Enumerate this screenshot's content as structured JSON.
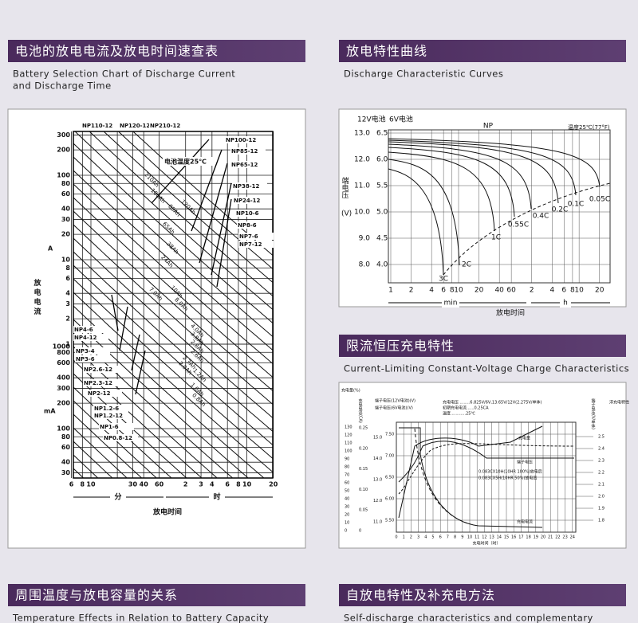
{
  "sections": [
    {
      "title": "电池的放电电流及放电时间速查表",
      "subtitle": [
        "Battery Selection Chart of Discharge Current",
        "and Discharge Time"
      ]
    },
    {
      "title": "放电特性曲线",
      "subtitle": [
        "Discharge Characteristic Curves"
      ]
    },
    {
      "title": "限流恒压充电特性",
      "subtitle": [
        "Current-Limiting Constant-Voltage Charge Characteristics"
      ]
    },
    {
      "title": "周围温度与放电容量的关系",
      "subtitle": [
        "Temperature Effects in Relation to Battery Capacity"
      ]
    },
    {
      "title": "自放电特性及补充电方法",
      "subtitle": [
        "Self-discharge characteristics and complementary"
      ]
    }
  ],
  "selection_chart": {
    "y_ticks_a": [
      300,
      200,
      100,
      80,
      60,
      40,
      30,
      20,
      10,
      8,
      6,
      4,
      3,
      2,
      1
    ],
    "unit_a": "A",
    "y_ticks_ma": [
      1000,
      800,
      600,
      400,
      300,
      200,
      100,
      80,
      60,
      40,
      30
    ],
    "unit_ma": "mA",
    "y_label": "放电电流",
    "x_ticks_min": [
      6,
      8,
      10,
      30,
      40,
      60
    ],
    "x_ticks_h": [
      2,
      3,
      4,
      6,
      8,
      10,
      20
    ],
    "x_unit_min": "分",
    "x_unit_h": "时",
    "x_label": "放电时间",
    "note": "电池温度25℃",
    "models": [
      "NP110-12",
      "NP120-12",
      "NP210-12",
      "NP100-12",
      "NP85-12",
      "NP65-12",
      "NP38-12",
      "NP24-12",
      "NP10-6",
      "NP8-6",
      "NP7-6",
      "NP7-12",
      "NP4-6",
      "NP4-12",
      "NP3-4",
      "NP3-6",
      "NP2.6-12",
      "NP2.3-12",
      "NP2-12",
      "NP1.2-6",
      "NP1.2-12",
      "NP1-6",
      "NP0.8-12"
    ],
    "capacities": [
      "210Ah",
      "100Ah",
      "120Ah",
      "85Ah",
      "65Ah",
      "38Ah",
      "24Ah",
      "10Ah",
      "7.0Ah",
      "8.0Ah",
      "4.0Ah",
      "3.8Ah",
      "2.8Ah",
      "2.6Ah",
      "2.3Ah",
      "2.0Ah",
      "1.2Ah",
      "1.0Ah",
      "0.8Ah"
    ]
  },
  "discharge_chart": {
    "label_12v": "12V电池",
    "label_6v": "6V电池",
    "series": "NP",
    "temperature": "温度25℃(77°F)",
    "y_ticks_12v": [
      "13.0",
      "12.0",
      "11.0",
      "10.0",
      "9.0",
      "8.0"
    ],
    "y_ticks_6v": [
      "6.5",
      "6.0",
      "5.5",
      "5.0",
      "4.5",
      "4.0"
    ],
    "y_label": "端电压",
    "y_unit": "(V)",
    "x_ticks_min": [
      1,
      2,
      4,
      6,
      8,
      10,
      20,
      40,
      60
    ],
    "x_ticks_h": [
      2,
      4,
      6,
      8,
      10,
      20
    ],
    "x_unit_min": "min",
    "x_unit_h": "h",
    "x_label": "放电时间",
    "curves": [
      "3C",
      "2C",
      "1C",
      "0.55C",
      "0.4C",
      "0.2C",
      "0.1C",
      "0.05C"
    ]
  },
  "charge_chart": {
    "label_pct": "充电量(%)",
    "label_current": "充电电流(CA)",
    "label_v12": "端子电压(12V电池)(V)",
    "label_v6": "端子电压(6V电池)(V)",
    "label_cell": "端子电压(V/单体)",
    "label_float": "浮充电特性",
    "pct_ticks": [
      130,
      120,
      110,
      100,
      90,
      80,
      70,
      60,
      50,
      40,
      30,
      20,
      10,
      0
    ],
    "current_ticks": [
      "0.25",
      "0.20",
      "0.15",
      "0.10",
      "0.05",
      "0"
    ],
    "v12_ticks": [
      "15.0",
      "14.0",
      "13.0",
      "12.0",
      "11.0"
    ],
    "v6_ticks": [
      "7.50",
      "7.00",
      "6.50",
      "6.00",
      "5.50"
    ],
    "cell_ticks": [
      "2.5",
      "2.4",
      "2.3",
      "2.2",
      "2.1",
      "2.0",
      "1.9",
      "1.8"
    ],
    "x_ticks": [
      "0",
      "1",
      "2",
      "3",
      "4",
      "5",
      "6",
      "7",
      "8",
      "9",
      "10",
      "11",
      "12",
      "13",
      "14",
      "15",
      "16",
      "17",
      "18",
      "19",
      "20",
      "21",
      "22",
      "23",
      "24"
    ],
    "x_label": "充电时间（时）",
    "conditions": [
      "充电电压 ........6.825V/6V,13.65V/12V(2.275V/单体)",
      "初期充电电流......0.25CA",
      "温度............25℃"
    ],
    "curve_labels": [
      "充电量",
      "端子电压",
      "0.083CX10H(10HR 100%)放电后",
      "0.083CX5H(10HR 50%)放电后",
      "充电电流"
    ]
  }
}
